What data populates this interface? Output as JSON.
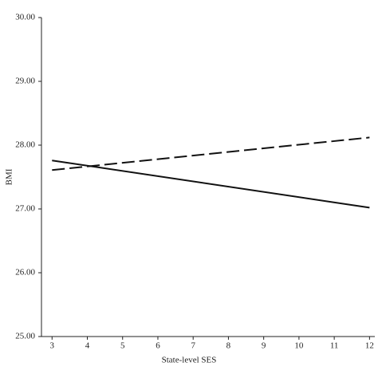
{
  "chart_data": {
    "type": "line",
    "x_label": "State-level SES",
    "y_label": "BMI",
    "x": [
      3,
      12
    ],
    "series": [
      {
        "color": "#111111",
        "dash": false,
        "values": [
          27.76,
          27.02
        ]
      },
      {
        "color": "#111111",
        "dash": true,
        "values": [
          27.61,
          28.12
        ]
      }
    ],
    "xlim": [
      2.7,
      12.15
    ],
    "xticks": [
      3,
      4,
      5,
      6,
      7,
      8,
      9,
      10,
      11,
      12
    ],
    "ylim": [
      25,
      30
    ],
    "yticks": [
      {
        "value": 25,
        "label": "25.00"
      },
      {
        "value": 26,
        "label": "26.00"
      },
      {
        "value": 27,
        "label": "27.00"
      },
      {
        "value": 28,
        "label": "28.00"
      },
      {
        "value": 29,
        "label": "29.00"
      },
      {
        "value": 30,
        "label": "30.00"
      }
    ],
    "grid": false
  }
}
